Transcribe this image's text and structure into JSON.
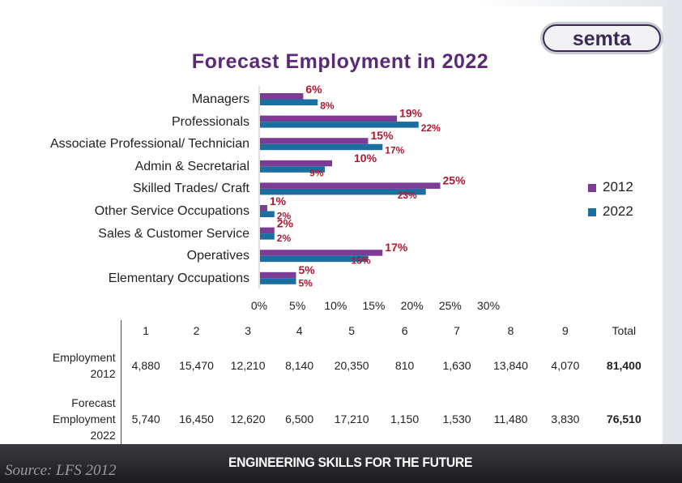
{
  "title": "Forecast Employment in 2022",
  "logo_text": "semta",
  "colors": {
    "series_2012": "#7b3c96",
    "series_2022": "#1b6fa0",
    "title": "#5b2a77",
    "label_2012": "#b01830",
    "label_2022": "#b01830"
  },
  "chart_data": {
    "type": "bar",
    "orientation": "horizontal",
    "title": "Forecast Employment in 2022",
    "categories": [
      "Managers",
      "Professionals",
      "Associate Professional/ Technician",
      "Admin & Secretarial",
      "Skilled Trades/ Craft",
      "Other Service Occupations",
      "Sales & Customer Service",
      "Operatives",
      "Elementary Occupations"
    ],
    "series": [
      {
        "name": "2012",
        "values": [
          6,
          19,
          15,
          10,
          25,
          1,
          2,
          17,
          5
        ],
        "labels": [
          "6%",
          "19%",
          "15%",
          "10%",
          "25%",
          "1%",
          "2%",
          "17%",
          "5%"
        ]
      },
      {
        "name": "2022",
        "values": [
          8,
          22,
          17,
          9,
          23,
          2,
          2,
          15,
          5
        ],
        "labels": [
          "8%",
          "22%",
          "17%",
          "9%",
          "23%",
          "2%",
          "2%",
          "15%",
          "5%"
        ]
      }
    ],
    "xlim": [
      0,
      30
    ],
    "xticks": [
      "0%",
      "5%",
      "10%",
      "15%",
      "20%",
      "25%",
      "30%"
    ],
    "xlabel": "",
    "ylabel": "",
    "legend": [
      "2012",
      "2022"
    ],
    "legend_position": "right"
  },
  "table": {
    "columns": [
      "1",
      "2",
      "3",
      "4",
      "5",
      "6",
      "7",
      "8",
      "9",
      "Total"
    ],
    "rows": [
      {
        "label": "Employment 2012",
        "label_lines": [
          "Employment",
          "2012"
        ],
        "values": [
          "4,880",
          "15,470",
          "12,210",
          "8,140",
          "20,350",
          "810",
          "1,630",
          "13,840",
          "4,070",
          "81,400"
        ]
      },
      {
        "label": "Forecast Employment 2022",
        "label_lines": [
          "Forecast",
          "Employment",
          "2022"
        ],
        "values": [
          "5,740",
          "16,450",
          "12,620",
          "6,500",
          "17,210",
          "1,150",
          "1,530",
          "11,480",
          "3,830",
          "76,510"
        ]
      }
    ]
  },
  "footer": {
    "source": "Source: LFS 2012",
    "tagline": "ENGINEERING SKILLS FOR THE FUTURE"
  }
}
